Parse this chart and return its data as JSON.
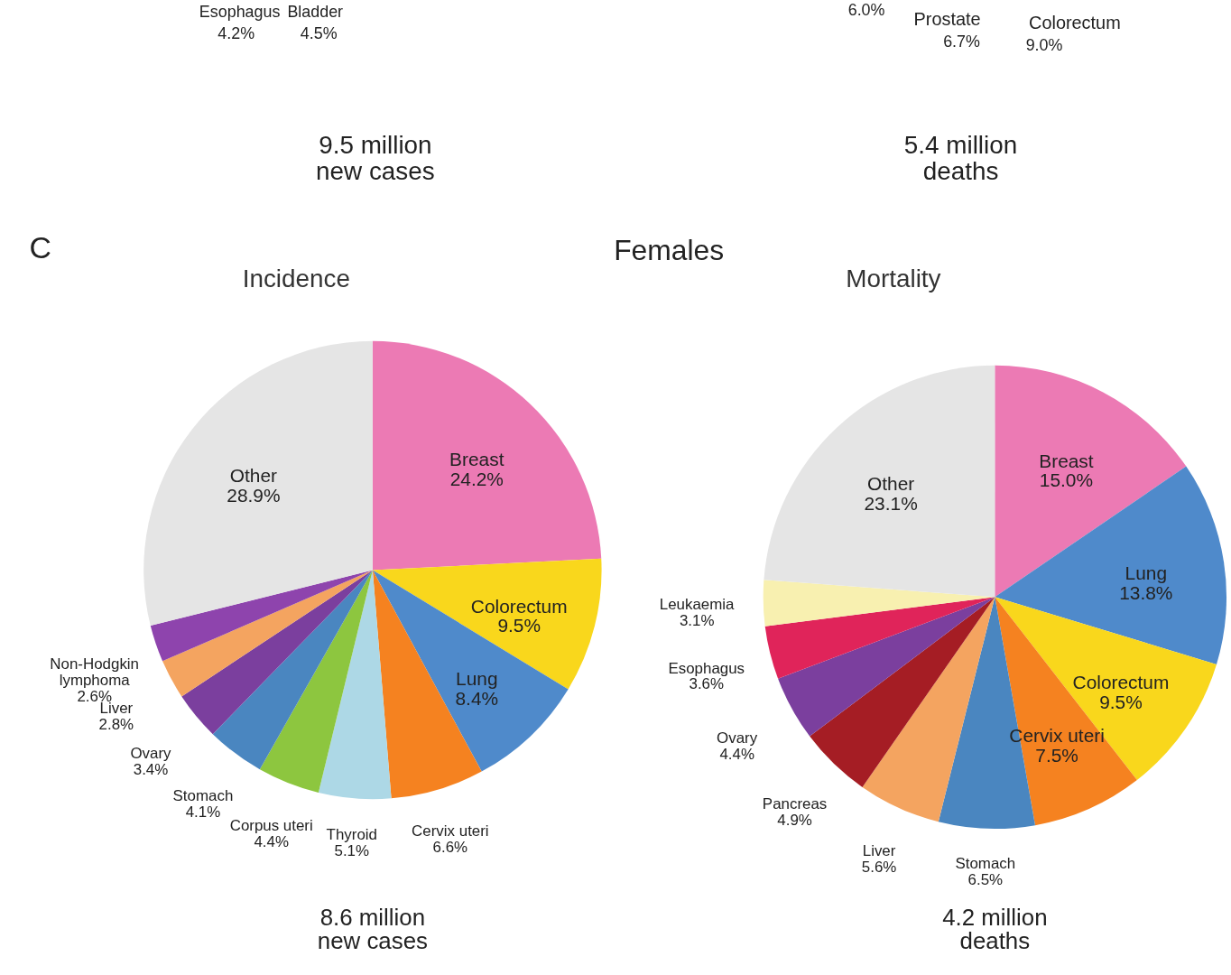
{
  "chart_data": [
    {
      "type": "other",
      "annotations": [
        "Esophagus",
        "Bladder",
        "4.2%",
        "4.5%",
        "9.5 million\nnew cases",
        "6.0%",
        "Prostate",
        "6.7%",
        "Colorectum",
        "9.0%",
        "5.4 million\ndeaths",
        "C",
        "Females"
      ]
    },
    {
      "type": "pie",
      "title": "Incidence",
      "categories": [
        "Breast",
        "Colorectum",
        "Lung",
        "Cervix uteri",
        "Thyroid",
        "Corpus uteri",
        "Stomach",
        "Ovary",
        "Liver",
        "Non-Hodgkin lymphoma",
        "Other"
      ],
      "values": [
        24.2,
        9.5,
        8.4,
        6.6,
        5.1,
        4.4,
        4.1,
        3.4,
        2.8,
        2.6,
        28.9
      ],
      "value_labels": [
        "24.2%",
        "9.5%",
        "8.4%",
        "6.6%",
        "5.1%",
        "4.4%",
        "4.1%",
        "3.4%",
        "2.8%",
        "2.6%",
        "28.9%"
      ],
      "colors": [
        "#ec7ab4",
        "#f9d71c",
        "#4f8acb",
        "#f58220",
        "#add8e6",
        "#8dc63f",
        "#4a86c0",
        "#7b3f9e",
        "#f4a460",
        "#8e44ad",
        "#e5e5e5"
      ],
      "annotations": [
        "8.6 million\nnew cases"
      ]
    },
    {
      "type": "pie",
      "title": "Mortality",
      "categories": [
        "Breast",
        "Lung",
        "Colorectum",
        "Cervix uteri",
        "Stomach",
        "Liver",
        "Pancreas",
        "Ovary",
        "Esophagus",
        "Leukaemia",
        "Other"
      ],
      "values": [
        15.0,
        13.8,
        9.5,
        7.5,
        6.5,
        5.6,
        4.9,
        4.4,
        3.6,
        3.1,
        23.1
      ],
      "value_labels": [
        "15.0%",
        "13.8%",
        "9.5%",
        "7.5%",
        "6.5%",
        "5.6%",
        "4.9%",
        "4.4%",
        "3.6%",
        "3.1%",
        "23.1%"
      ],
      "colors": [
        "#ec7ab4",
        "#4f8acb",
        "#f9d71c",
        "#f58220",
        "#4a86c0",
        "#f4a460",
        "#a51d24",
        "#7b3f9e",
        "#e0245a",
        "#f8f0b0",
        "#e5e5e5"
      ],
      "annotations": [
        "4.2 million\ndeaths"
      ]
    }
  ]
}
